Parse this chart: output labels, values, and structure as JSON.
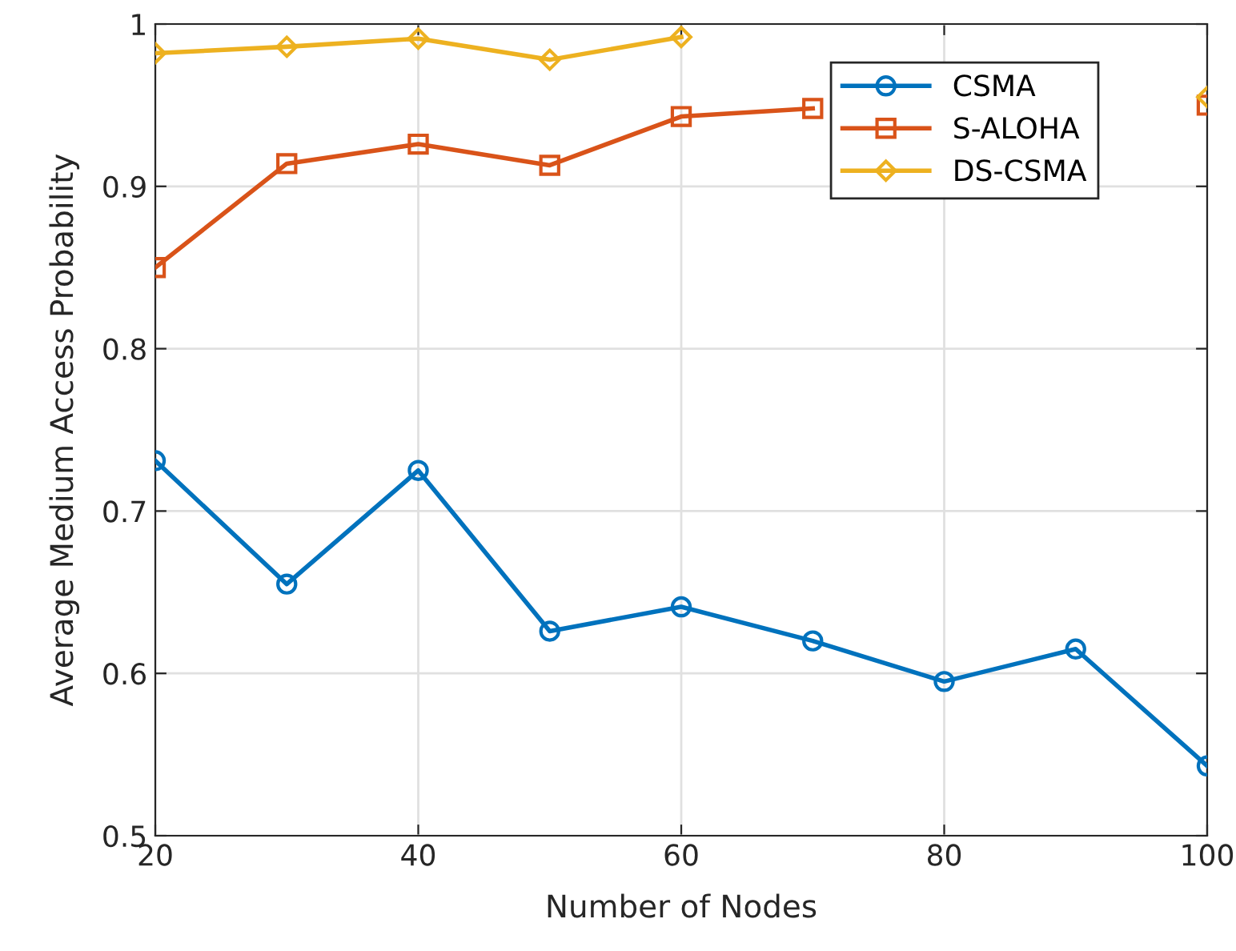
{
  "chart_data": {
    "type": "line",
    "xlabel": "Number of Nodes",
    "ylabel": "Average Medium Access Probability",
    "x": [
      20,
      30,
      40,
      50,
      60,
      70,
      80,
      90,
      100
    ],
    "series": [
      {
        "name": "CSMA",
        "color": "#0072bd",
        "marker": "circle",
        "values": [
          0.731,
          0.655,
          0.725,
          0.626,
          0.641,
          0.62,
          0.595,
          0.615,
          0.543
        ]
      },
      {
        "name": "S-ALOHA",
        "color": "#d95319",
        "marker": "square",
        "values": [
          0.85,
          0.914,
          0.926,
          0.913,
          0.943,
          0.948,
          null,
          null,
          0.95
        ]
      },
      {
        "name": "DS-CSMA",
        "color": "#edb120",
        "marker": "diamond",
        "values": [
          0.982,
          0.986,
          0.991,
          0.978,
          0.992,
          null,
          null,
          null,
          0.955
        ]
      }
    ],
    "xlim": [
      20,
      100
    ],
    "xticks": [
      20,
      40,
      60,
      80,
      100
    ],
    "ylim": [
      0.5,
      1
    ],
    "yticks": [
      0.5,
      0.6,
      0.7,
      0.8,
      0.9,
      1
    ],
    "grid": true,
    "legend": "top right",
    "line_style": "solid"
  }
}
